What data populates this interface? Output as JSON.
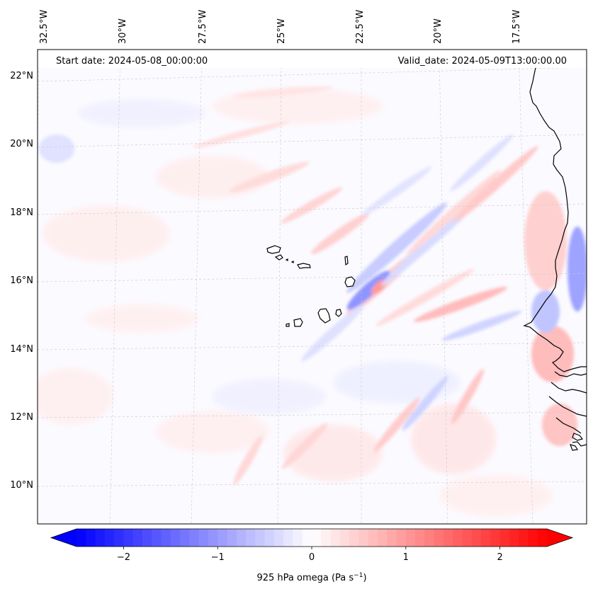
{
  "header": {
    "start_date": "Start date: 2024-05-08_00:00:00",
    "valid_date": "Valid_date: 2024-05-09T13:00:00.00"
  },
  "map": {
    "longitude_labels": [
      "32.5°W",
      "30°W",
      "27.5°W",
      "25°W",
      "22.5°W",
      "20°W",
      "17.5°W"
    ],
    "latitude_labels": [
      "22°N",
      "20°N",
      "18°N",
      "16°N",
      "14°N",
      "12°N",
      "10°N"
    ],
    "gridlines": true,
    "coastline_color": "#000000"
  },
  "colorbar": {
    "label_main": "925 hPa omega (Pa s",
    "label_exp": "−1",
    "label_close": ")",
    "ticks": [
      {
        "value": -2,
        "label": "−2"
      },
      {
        "value": -1,
        "label": "−1"
      },
      {
        "value": 0,
        "label": "0"
      },
      {
        "value": 1,
        "label": "1"
      },
      {
        "value": 2,
        "label": "2"
      }
    ],
    "vmin": -2.5,
    "vmax": 2.5,
    "colormap": "bwr",
    "low_color": "#0000ff",
    "mid_color": "#ffffff",
    "high_color": "#ff0000",
    "extend": "both"
  }
}
